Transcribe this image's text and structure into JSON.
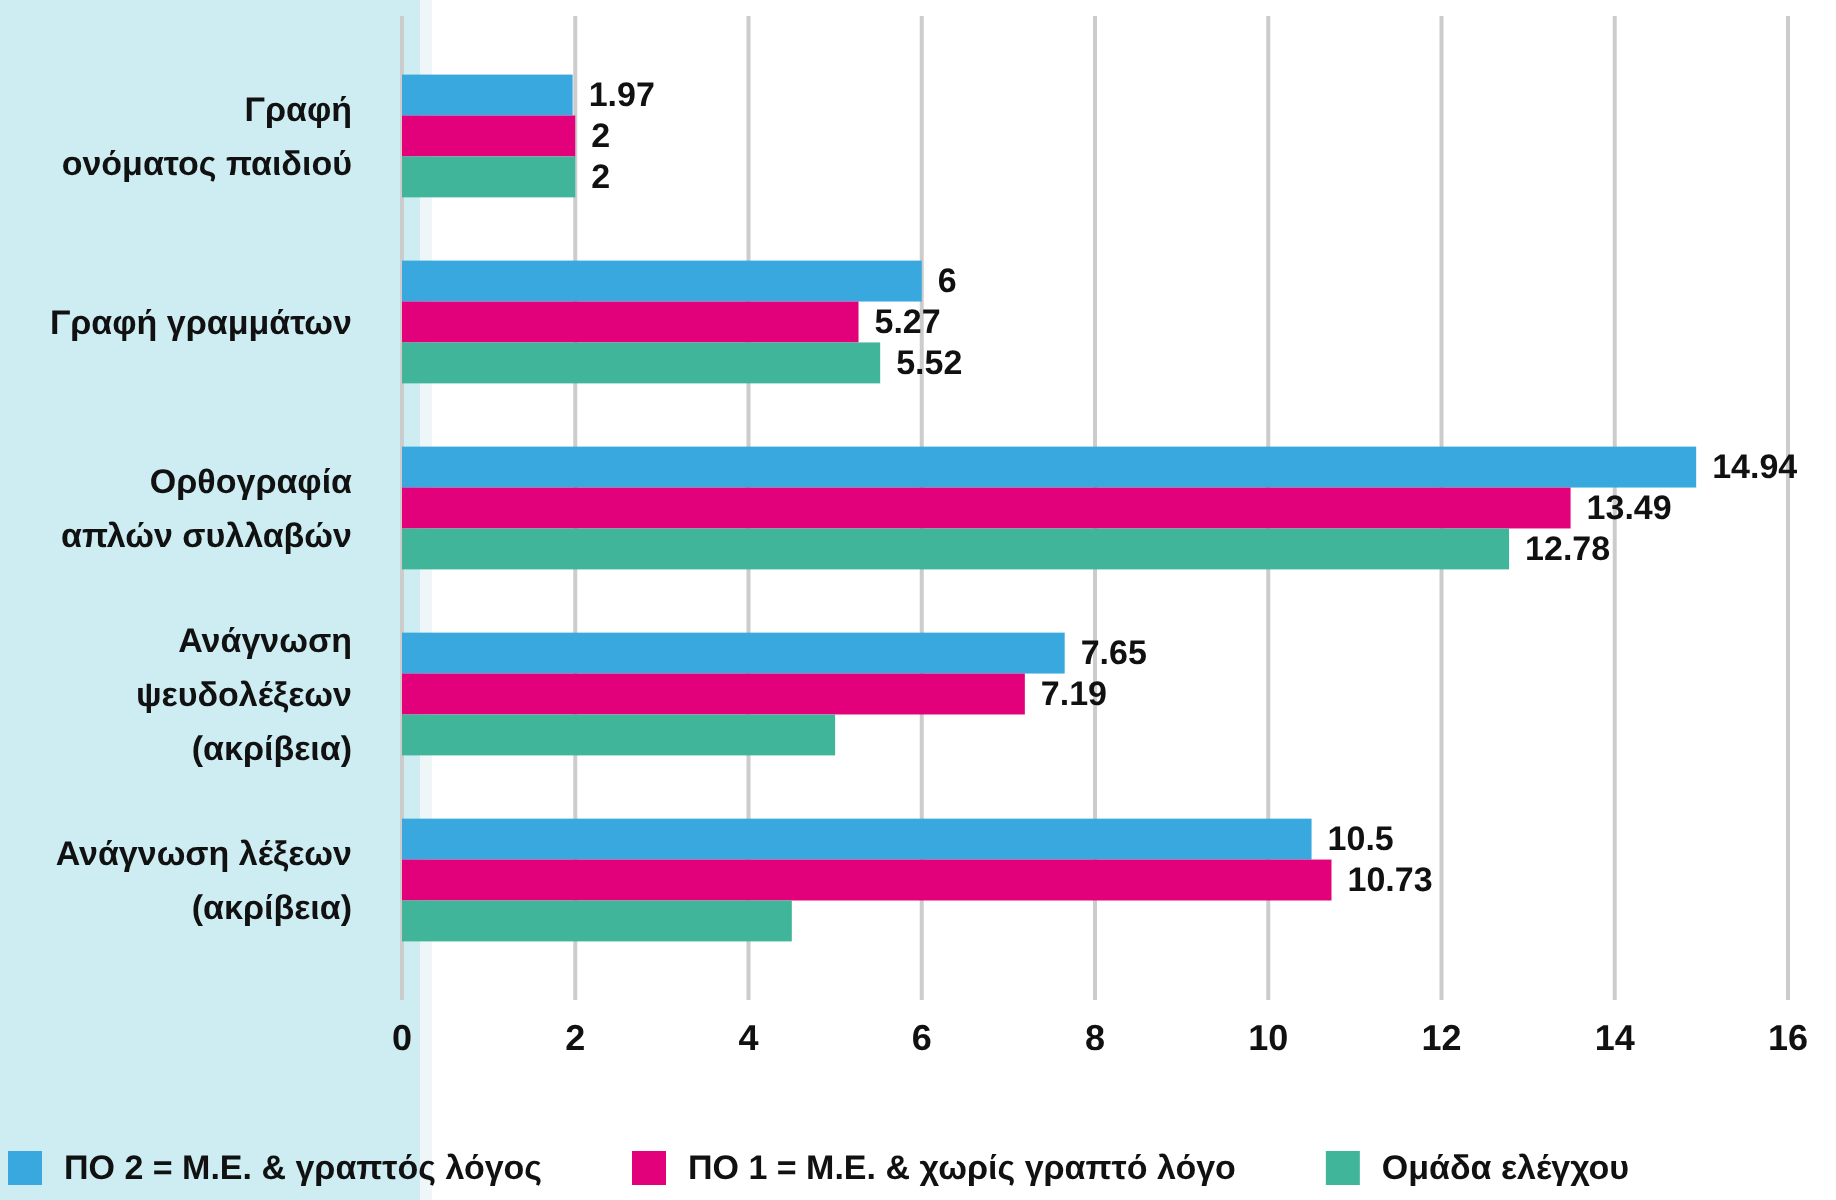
{
  "chart_data": {
    "type": "bar",
    "orientation": "horizontal",
    "categories": [
      "Γραφή\nονόματος παιδιού",
      "Γραφή γραμμάτων",
      "Ορθογραφία\nαπλών συλλαβών",
      "Ανάγνωση\nψευδολέξεων\n(ακρίβεια)",
      "Ανάγνωση λέξεων\n(ακρίβεια)"
    ],
    "series": [
      {
        "name": "ΠΟ 2 = Μ.Ε. & γραπτός λόγος",
        "color": "#38a8df",
        "values": [
          1.97,
          6,
          14.94,
          7.65,
          10.5
        ],
        "value_labels": [
          "1.97",
          "6",
          "14.94",
          "7.65",
          "10.5"
        ]
      },
      {
        "name": "ΠΟ 1 = Μ.Ε. & χωρίς γραπτό λόγο",
        "color": "#e3007b",
        "values": [
          2,
          5.27,
          13.49,
          7.19,
          10.73
        ],
        "value_labels": [
          "2",
          "5.27",
          "13.49",
          "7.19",
          "10.73"
        ]
      },
      {
        "name": "Ομάδα ελέγχου",
        "color": "#40b599",
        "values": [
          2,
          5.52,
          12.78,
          5.0,
          4.5
        ],
        "value_labels": [
          "2",
          "5.52",
          "12.78",
          null,
          null
        ]
      }
    ],
    "xlim": [
      0,
      16
    ],
    "xticks": [
      0,
      2,
      4,
      6,
      8,
      10,
      12,
      14,
      16
    ],
    "grid": "x",
    "legend": "bottom"
  }
}
